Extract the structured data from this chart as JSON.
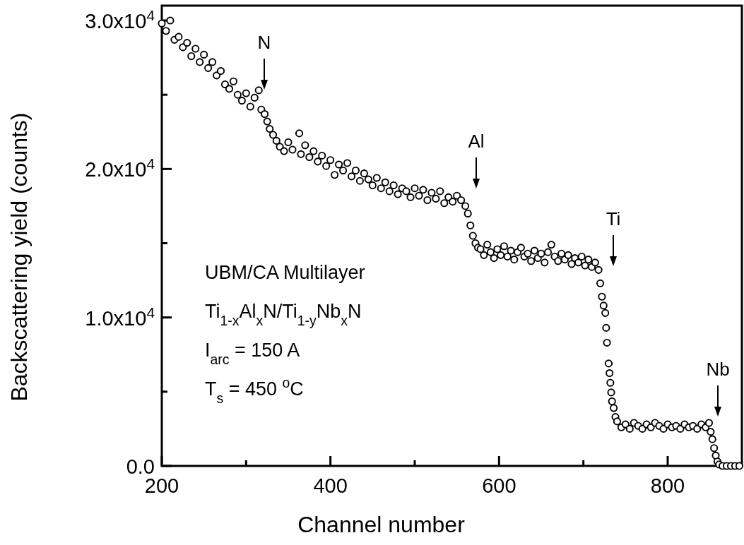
{
  "chart_data": {
    "type": "scatter",
    "xlabel": "Channel number",
    "ylabel": "Backscattering yield (counts)",
    "xlim": [
      200,
      888
    ],
    "ylim": [
      0,
      31000
    ],
    "xticks": [
      200,
      {
        "value": 300,
        "label": null
      },
      400,
      {
        "value": 500,
        "label": null
      },
      600,
      {
        "value": 700,
        "label": null
      },
      800
    ],
    "yticks": [
      {
        "value": 0,
        "label": "0.0"
      },
      {
        "value": 5000,
        "label": null
      },
      {
        "value": 10000,
        "label": "1.0x10$^{4}$"
      },
      {
        "value": 15000,
        "label": null
      },
      {
        "value": 20000,
        "label": "2.0x10$^{4}$"
      },
      {
        "value": 25000,
        "label": null
      },
      {
        "value": 30000,
        "label": "3.0x10$^{4}$"
      }
    ],
    "marker": "circle",
    "grid": false,
    "series": [
      {
        "color": "#000000",
        "x": [
          200,
          205,
          210,
          215,
          220,
          225,
          230,
          235,
          240,
          245,
          250,
          255,
          260,
          265,
          270,
          275,
          280,
          285,
          290,
          295,
          300,
          305,
          310,
          315,
          318,
          322,
          325,
          328,
          332,
          336,
          340,
          345,
          350,
          355,
          363,
          365,
          370,
          375,
          380,
          385,
          390,
          395,
          400,
          405,
          410,
          415,
          420,
          425,
          430,
          435,
          440,
          445,
          450,
          455,
          460,
          465,
          470,
          475,
          480,
          485,
          490,
          495,
          500,
          505,
          510,
          515,
          520,
          525,
          530,
          535,
          540,
          545,
          550,
          555,
          560,
          563,
          566,
          569,
          572,
          575,
          578,
          582,
          586,
          590,
          594,
          598,
          602,
          606,
          610,
          614,
          618,
          622,
          626,
          630,
          634,
          638,
          642,
          646,
          650,
          654,
          658,
          662,
          666,
          670,
          674,
          678,
          682,
          686,
          690,
          694,
          698,
          702,
          706,
          710,
          714,
          718,
          720,
          722,
          724,
          726,
          727,
          728,
          730,
          731,
          732,
          733,
          734,
          736,
          738,
          740,
          745,
          750,
          755,
          760,
          765,
          770,
          775,
          780,
          785,
          790,
          795,
          800,
          805,
          810,
          815,
          820,
          825,
          830,
          835,
          840,
          845,
          849,
          851,
          853,
          855,
          857,
          859,
          861,
          865,
          870,
          875,
          880,
          885
        ],
        "values": [
          29800,
          29300,
          30000,
          28700,
          28900,
          28200,
          28500,
          27600,
          28100,
          27200,
          27700,
          26800,
          27200,
          26300,
          26600,
          25700,
          25400,
          25900,
          25000,
          24600,
          25100,
          24200,
          24800,
          25300,
          24000,
          23700,
          23200,
          22700,
          22300,
          21900,
          21500,
          21200,
          21800,
          21300,
          22400,
          21000,
          21600,
          20800,
          21200,
          20500,
          20900,
          20200,
          20600,
          19600,
          20300,
          19900,
          20400,
          19500,
          19900,
          19200,
          19700,
          19300,
          18900,
          19400,
          18700,
          19100,
          18500,
          18900,
          18300,
          18700,
          18500,
          18100,
          18700,
          18200,
          18600,
          17900,
          18400,
          18000,
          18500,
          17700,
          18100,
          17800,
          18200,
          17900,
          17500,
          17000,
          16200,
          15500,
          15000,
          14700,
          14600,
          14200,
          14900,
          14400,
          14000,
          14600,
          14200,
          14800,
          14100,
          14500,
          13900,
          14400,
          14700,
          14100,
          14300,
          13800,
          14500,
          14000,
          14300,
          13700,
          14400,
          14900,
          14100,
          13800,
          14300,
          13900,
          14200,
          13600,
          14000,
          13700,
          14100,
          13500,
          13900,
          13400,
          13700,
          13200,
          12300,
          11400,
          10800,
          10300,
          9300,
          8300,
          6900,
          6250,
          5600,
          4950,
          4350,
          3900,
          3300,
          3000,
          2600,
          2800,
          2500,
          2900,
          2700,
          2500,
          2800,
          2600,
          2900,
          2700,
          2500,
          2800,
          2600,
          2700,
          2500,
          2800,
          2600,
          2700,
          2500,
          2800,
          2600,
          2900,
          2300,
          1800,
          1200,
          700,
          300,
          100,
          0,
          0,
          0,
          0,
          0
        ]
      }
    ],
    "annotations": [
      "N",
      "Al",
      "Ti",
      "Nb",
      "UBM/CA Multilayer",
      "Ti$_{1-x}$Al$_{x}$N/Ti$_{1-y}$Nb$_{x}$N",
      "I$_{arc}$ = 150 A",
      "T$_{s}$ = 450 $^{o}$C"
    ]
  }
}
